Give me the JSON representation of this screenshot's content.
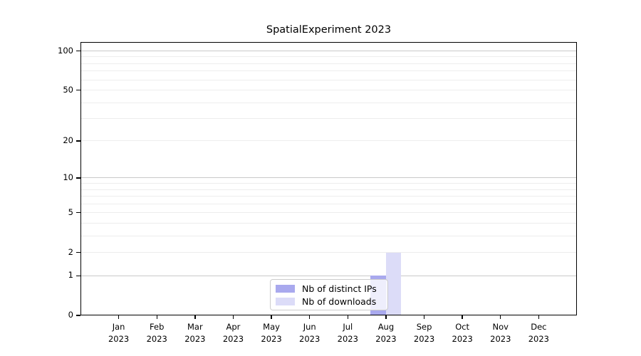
{
  "chart_data": {
    "type": "bar",
    "title": "SpatialExperiment 2023",
    "categories": [
      "Jan",
      "Feb",
      "Mar",
      "Apr",
      "May",
      "Jun",
      "Jul",
      "Aug",
      "Sep",
      "Oct",
      "Nov",
      "Dec"
    ],
    "year_label": "2023",
    "series": [
      {
        "name": "Nb of distinct IPs",
        "color": "#a9a9ee",
        "values": [
          0,
          0,
          0,
          0,
          0,
          0,
          0,
          1,
          0,
          0,
          0,
          0
        ]
      },
      {
        "name": "Nb of downloads",
        "color": "#dcdcf8",
        "values": [
          0,
          0,
          0,
          0,
          0,
          0,
          0,
          2,
          0,
          0,
          0,
          0
        ]
      }
    ],
    "xlabel": "",
    "ylabel": "",
    "yscale": "log1p",
    "ylim": [
      0,
      117
    ],
    "y_tick_labels": [
      0,
      1,
      2,
      5,
      10,
      20,
      50,
      100
    ],
    "grid_major": [
      1,
      10,
      100
    ],
    "grid_minor": [
      2,
      3,
      4,
      5,
      6,
      7,
      8,
      9,
      20,
      30,
      40,
      50,
      60,
      70,
      80,
      90
    ],
    "grid_on": true,
    "legend_position": "lower center",
    "colors": {
      "grid_major": "#c9c9c9",
      "grid_minor": "#ededed",
      "axis": "#000000",
      "background": "#ffffff"
    }
  }
}
